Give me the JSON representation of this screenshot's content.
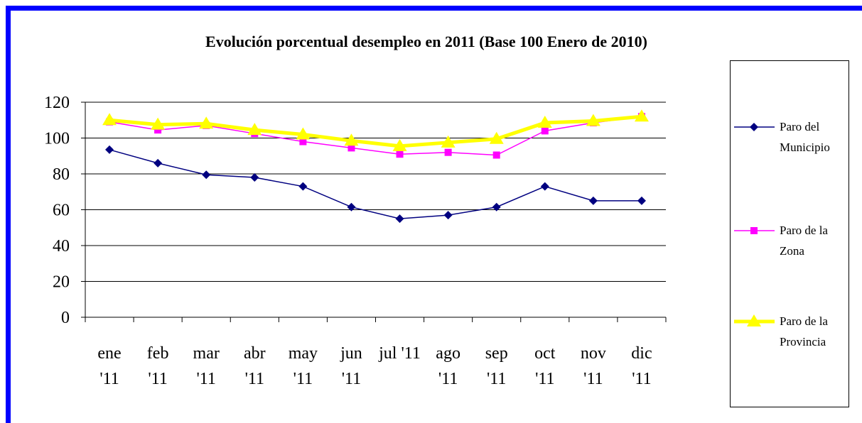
{
  "chart_data": {
    "type": "line",
    "title": "Evolución porcentual desempleo en 2011 (Base 100 Enero de 2010)",
    "categories": [
      "ene '11",
      "feb '11",
      "mar '11",
      "abr '11",
      "may '11",
      "jun '11",
      "jul '11",
      "ago '11",
      "sep '11",
      "oct '11",
      "nov '11",
      "dic '11"
    ],
    "series": [
      {
        "name": "Paro del Municipio",
        "color": "#000080",
        "marker": "diamond",
        "values": [
          93.5,
          86,
          79.5,
          78,
          73,
          61.5,
          55,
          57,
          61.5,
          73,
          65,
          65
        ]
      },
      {
        "name": "Paro de la Zona",
        "color": "#ff00ff",
        "marker": "square",
        "values": [
          109,
          104.5,
          107,
          102.5,
          98,
          94.5,
          91,
          92,
          90.5,
          104,
          108.5,
          112
        ]
      },
      {
        "name": "Paro de la Provincia",
        "color": "#ffff00",
        "marker": "triangle",
        "values": [
          110,
          107.5,
          108,
          104.5,
          102,
          98.5,
          95.5,
          97.5,
          99.5,
          108.5,
          109.5,
          112
        ]
      }
    ],
    "ylim": [
      0,
      120
    ],
    "yticks": [
      0,
      20,
      40,
      60,
      80,
      100,
      120
    ],
    "grid": true,
    "legend": "right"
  }
}
